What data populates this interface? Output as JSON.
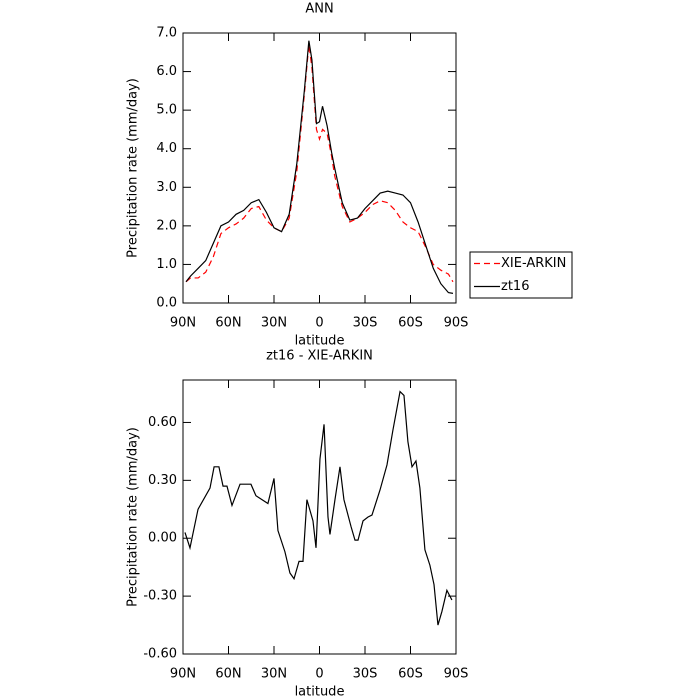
{
  "chart_data": [
    {
      "type": "line",
      "title": "ANN",
      "xlabel": "latitude",
      "ylabel": "Precipitation rate (mm/day)",
      "x": [
        88,
        85,
        80,
        75,
        70,
        65,
        60,
        55,
        50,
        45,
        40,
        35,
        30,
        25,
        20,
        15,
        10,
        7,
        5,
        2,
        0,
        -2,
        -5,
        -8,
        -10,
        -15,
        -20,
        -25,
        -30,
        -35,
        -40,
        -45,
        -50,
        -55,
        -60,
        -65,
        -70,
        -75,
        -80,
        -85,
        -88
      ],
      "series": [
        {
          "name": "XIE-ARKIN",
          "color": "#ff0000",
          "line_style": "dashed",
          "values": [
            0.55,
            0.65,
            0.65,
            0.8,
            1.2,
            1.8,
            1.95,
            2.05,
            2.2,
            2.45,
            2.5,
            2.15,
            1.95,
            1.85,
            2.2,
            3.4,
            5.4,
            6.7,
            6.1,
            4.5,
            4.25,
            4.5,
            4.4,
            3.8,
            3.3,
            2.5,
            2.1,
            2.2,
            2.35,
            2.55,
            2.65,
            2.6,
            2.4,
            2.1,
            1.95,
            1.85,
            1.45,
            1.0,
            0.85,
            0.75,
            0.55
          ]
        },
        {
          "name": "zt16",
          "color": "#000000",
          "line_style": "solid",
          "values": [
            0.55,
            0.7,
            0.9,
            1.1,
            1.55,
            2.0,
            2.1,
            2.3,
            2.4,
            2.6,
            2.68,
            2.35,
            1.95,
            1.85,
            2.3,
            3.6,
            5.5,
            6.8,
            6.3,
            4.65,
            4.7,
            5.1,
            4.6,
            3.9,
            3.5,
            2.6,
            2.15,
            2.2,
            2.45,
            2.65,
            2.85,
            2.9,
            2.85,
            2.8,
            2.6,
            2.1,
            1.5,
            0.9,
            0.5,
            0.27,
            0.25
          ]
        }
      ],
      "xlim": [
        90,
        -90
      ],
      "xticks": [
        {
          "value": 90,
          "label": "90N"
        },
        {
          "value": 60,
          "label": "60N"
        },
        {
          "value": 30,
          "label": "30N"
        },
        0,
        {
          "value": -30,
          "label": "30S"
        },
        {
          "value": -60,
          "label": "60S"
        },
        {
          "value": -90,
          "label": "90S"
        }
      ],
      "ylim": [
        0,
        7
      ],
      "yticks": [
        {
          "value": 0,
          "label": "0.0"
        },
        {
          "value": 1,
          "label": "1.0"
        },
        {
          "value": 2,
          "label": "2.0"
        },
        {
          "value": 3,
          "label": "3.0"
        },
        {
          "value": 4,
          "label": "4.0"
        },
        {
          "value": 5,
          "label": "5.0"
        },
        {
          "value": 6,
          "label": "6.0"
        },
        {
          "value": 7,
          "label": "7.0"
        }
      ],
      "legend": "right"
    },
    {
      "type": "line",
      "title": "zt16 - XIE-ARKIN",
      "xlabel": "latitude",
      "ylabel": "Precipitation rate (mm/day)",
      "x": [
        88.7,
        85.4,
        80.1,
        72.2,
        69.5,
        66.3,
        63.6,
        61.0,
        57.7,
        52.4,
        47.8,
        45.2,
        41.9,
        34.0,
        30.0,
        27.4,
        22.8,
        19.5,
        16.8,
        13.5,
        10.9,
        8.3,
        4.3,
        2.3,
        -0.3,
        -3.0,
        -5.6,
        -6.9,
        -10.2,
        -13.5,
        -16.1,
        -20.8,
        -23.4,
        -25.4,
        -28.7,
        -32.0,
        -34.6,
        -39.9,
        -44.5,
        -48.4,
        -53.1,
        -55.7,
        -58.3,
        -61.0,
        -63.6,
        -66.2,
        -69.5,
        -72.8,
        -75.5,
        -78.1,
        -80.7,
        -84.0,
        -87.3
      ],
      "series": [
        {
          "name": "zt16 - XIE-ARKIN",
          "color": "#000000",
          "line_style": "solid",
          "values": [
            0.03,
            -0.05,
            0.15,
            0.26,
            0.37,
            0.37,
            0.27,
            0.27,
            0.17,
            0.28,
            0.28,
            0.28,
            0.22,
            0.18,
            0.31,
            0.04,
            -0.07,
            -0.18,
            -0.21,
            -0.12,
            -0.12,
            0.2,
            0.09,
            -0.05,
            0.41,
            0.59,
            0.11,
            0.02,
            0.2,
            0.37,
            0.2,
            0.06,
            -0.01,
            -0.01,
            0.09,
            0.11,
            0.12,
            0.25,
            0.38,
            0.56,
            0.76,
            0.74,
            0.5,
            0.37,
            0.4,
            0.26,
            -0.06,
            -0.14,
            -0.24,
            -0.45,
            -0.38,
            -0.27,
            -0.32
          ]
        }
      ],
      "xlim": [
        90,
        -90
      ],
      "xticks": [
        {
          "value": 90,
          "label": "90N"
        },
        {
          "value": 60,
          "label": "60N"
        },
        {
          "value": 30,
          "label": "30N"
        },
        0,
        {
          "value": -30,
          "label": "30S"
        },
        {
          "value": -60,
          "label": "60S"
        },
        {
          "value": -90,
          "label": "90S"
        }
      ],
      "ylim": [
        -0.6,
        0.82
      ],
      "yticks": [
        {
          "value": -0.6,
          "label": "-0.60"
        },
        {
          "value": -0.3,
          "label": "-0.30"
        },
        {
          "value": 0,
          "label": "0.00"
        },
        {
          "value": 0.3,
          "label": "0.30"
        },
        {
          "value": 0.6,
          "label": "0.60"
        }
      ]
    }
  ]
}
